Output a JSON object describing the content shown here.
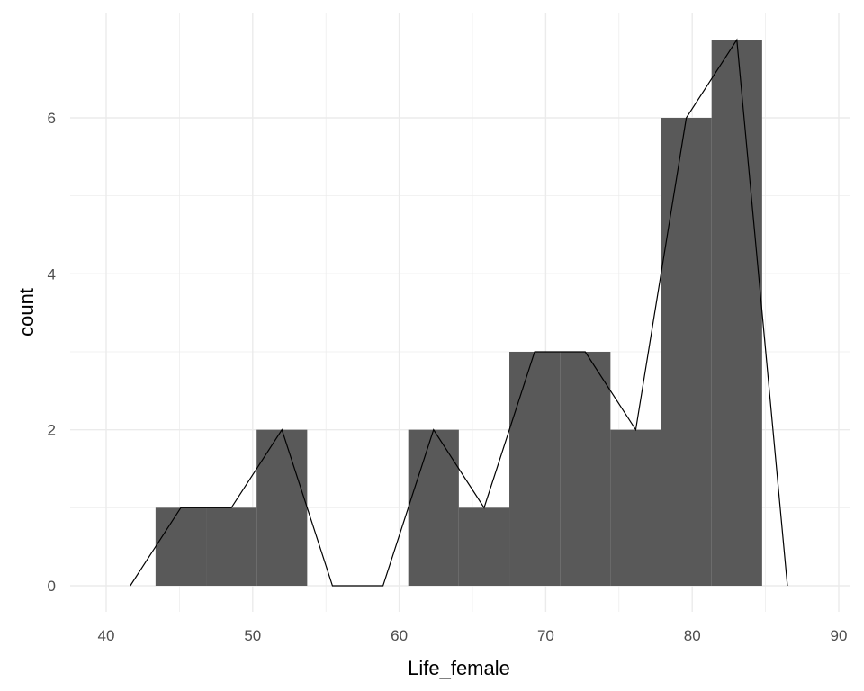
{
  "chart_data": {
    "type": "bar",
    "subtype": "histogram with frequency polygon",
    "title": "",
    "xlabel": "Life_female",
    "ylabel": "count",
    "xlim": [
      37.8,
      91.2
    ],
    "ylim": [
      -0.33,
      7.35
    ],
    "xticks": [
      40,
      50,
      60,
      70,
      80,
      90
    ],
    "yticks": [
      0,
      2,
      4,
      6
    ],
    "grid": true,
    "bin_width": 3.45,
    "bins": [
      {
        "x0": 43.37,
        "x1": 46.82,
        "count": 1
      },
      {
        "x0": 46.82,
        "x1": 50.27,
        "count": 1
      },
      {
        "x0": 50.27,
        "x1": 53.72,
        "count": 2
      },
      {
        "x0": 53.72,
        "x1": 57.17,
        "count": 0
      },
      {
        "x0": 57.17,
        "x1": 60.62,
        "count": 0
      },
      {
        "x0": 60.62,
        "x1": 64.07,
        "count": 2
      },
      {
        "x0": 64.07,
        "x1": 67.52,
        "count": 1
      },
      {
        "x0": 67.52,
        "x1": 70.97,
        "count": 3
      },
      {
        "x0": 70.97,
        "x1": 74.42,
        "count": 3
      },
      {
        "x0": 74.42,
        "x1": 77.87,
        "count": 2
      },
      {
        "x0": 77.87,
        "x1": 81.32,
        "count": 6
      },
      {
        "x0": 81.32,
        "x1": 84.77,
        "count": 7
      }
    ],
    "bar_color": "#595959",
    "line_color": "#000000"
  }
}
